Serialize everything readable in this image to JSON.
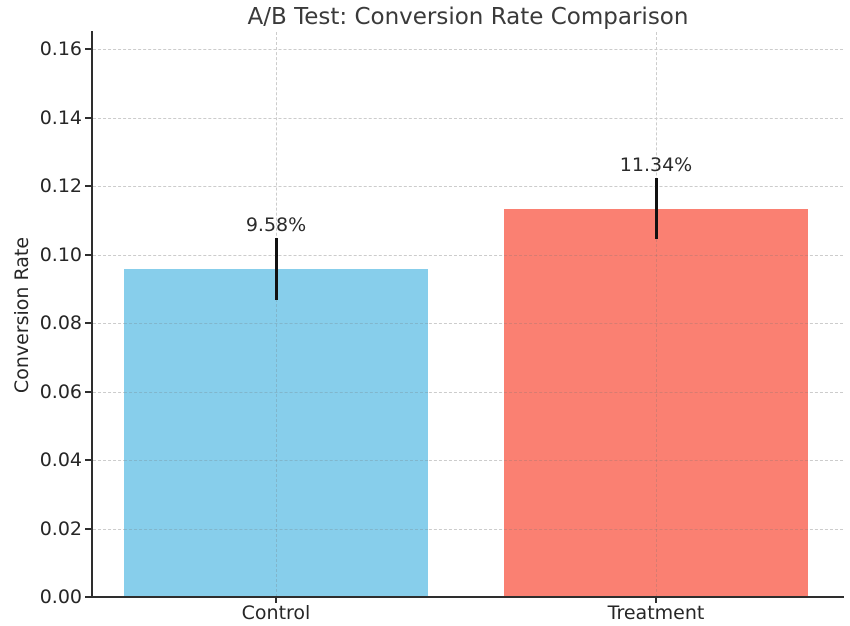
{
  "chart_data": {
    "type": "bar",
    "title": "A/B Test: Conversion Rate Comparison",
    "xlabel": "",
    "ylabel": "Conversion Rate",
    "categories": [
      "Control",
      "Treatment"
    ],
    "values": [
      0.0958,
      0.1134
    ],
    "errors": [
      0.009,
      0.009
    ],
    "bar_labels": [
      "9.58%",
      "11.34%"
    ],
    "bar_colors": [
      "#87CEEB",
      "#FA8072"
    ],
    "ylim": [
      0,
      0.165
    ],
    "yticks": [
      0,
      0.02,
      0.04,
      0.06,
      0.08,
      0.1,
      0.12,
      0.14,
      0.16
    ],
    "ytick_labels": [
      "0.00",
      "0.02",
      "0.04",
      "0.06",
      "0.08",
      "0.10",
      "0.12",
      "0.14",
      "0.16"
    ],
    "grid": true,
    "grid_style": "dashed",
    "grid_color": "#cccccc",
    "spine_color": "#2e2e2e",
    "error_bar_color": "#111111",
    "legend": "none"
  }
}
